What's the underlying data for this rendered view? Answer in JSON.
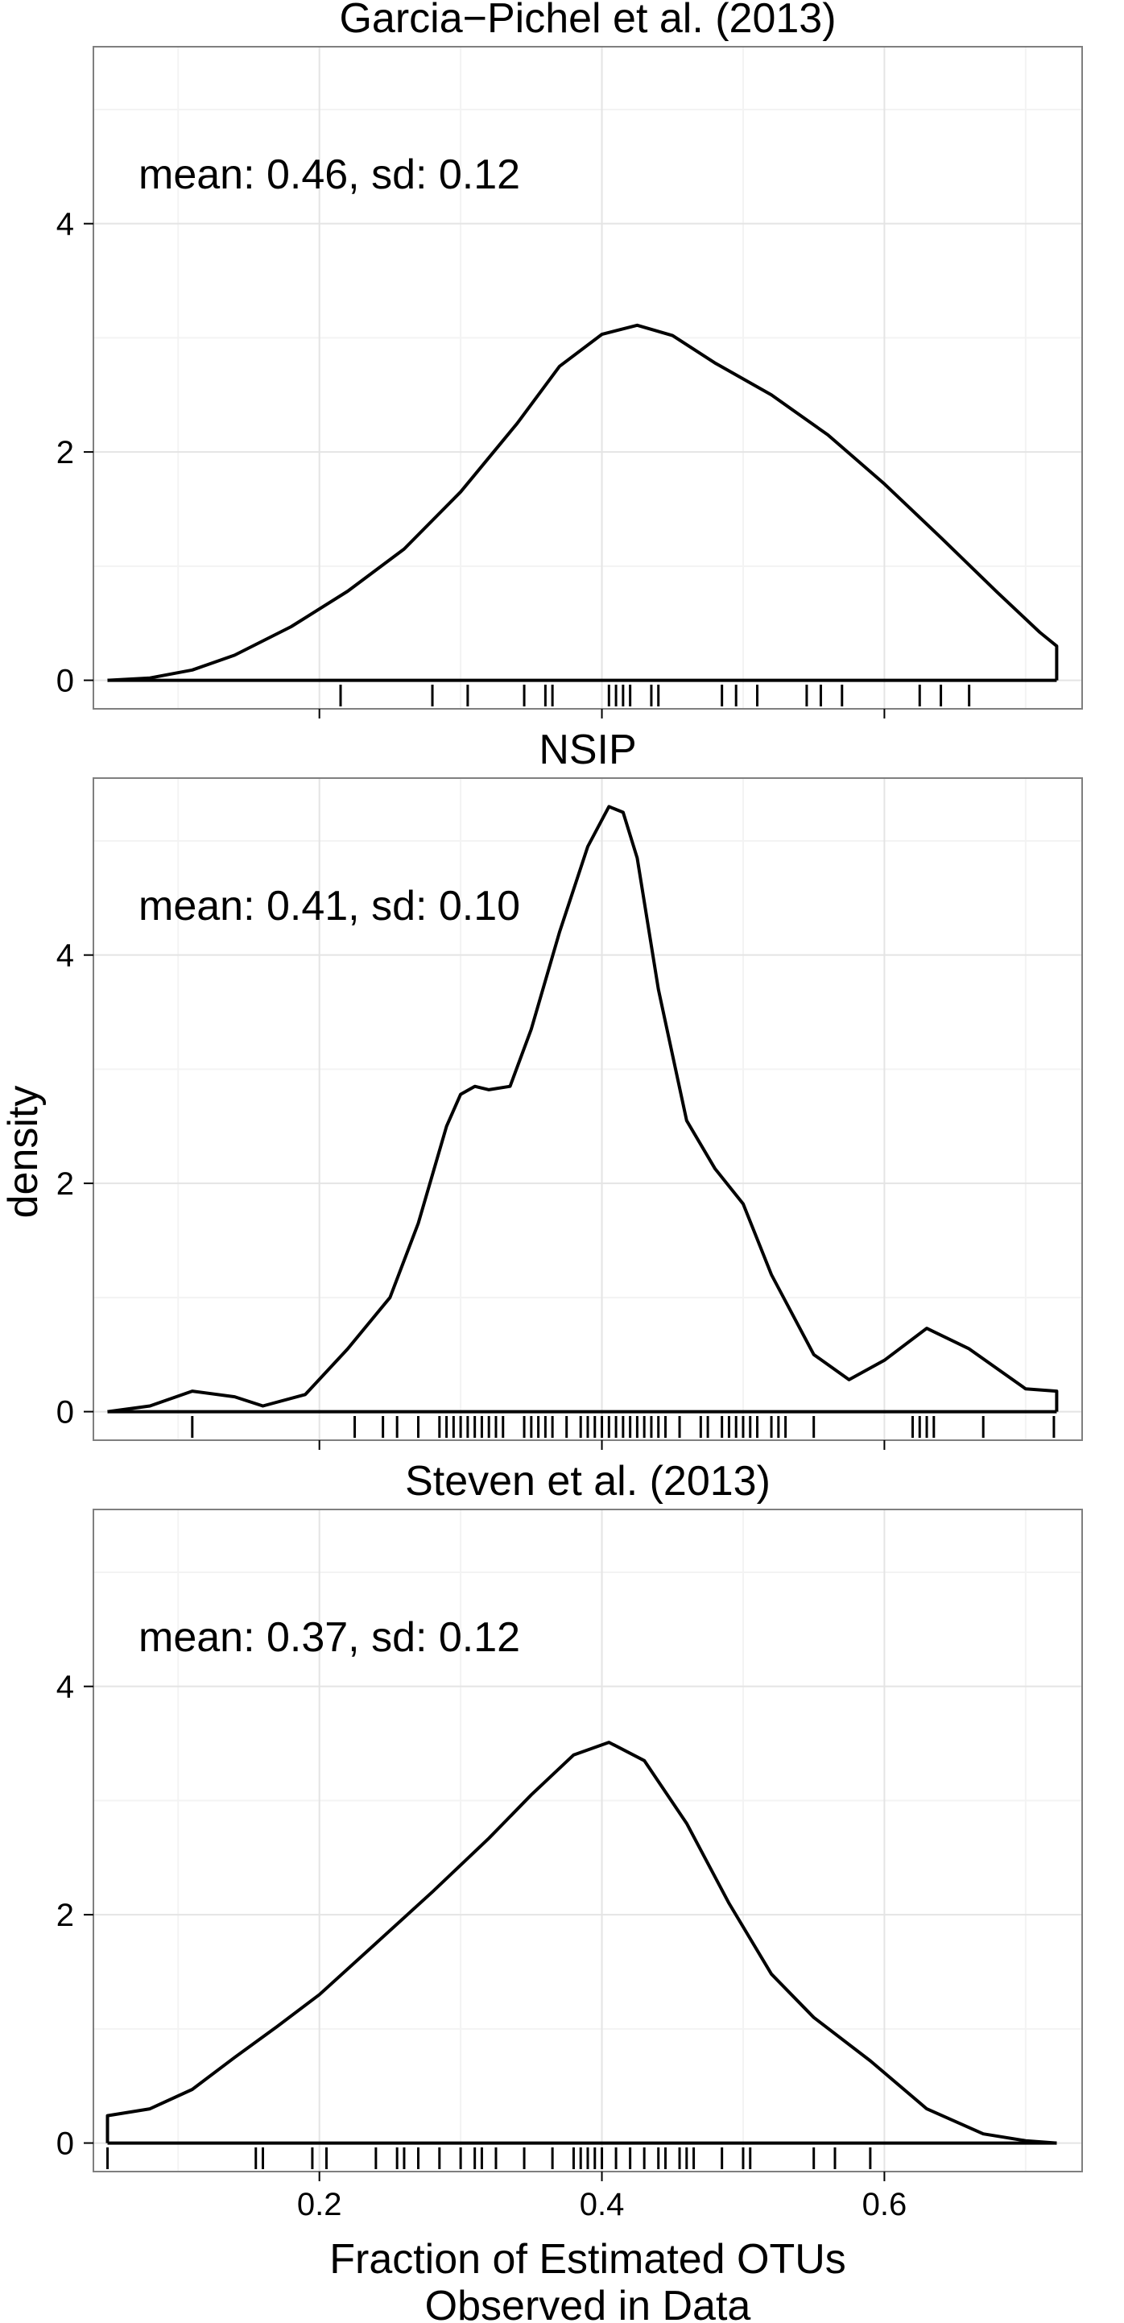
{
  "chart_data": {
    "type": "density",
    "xlabel_lines": [
      "Fraction of Estimated OTUs",
      "Observed in Data"
    ],
    "ylabel": "density",
    "xlim": [
      0.04,
      0.74
    ],
    "ylim": [
      -0.25,
      5.55
    ],
    "x_ticks": [
      0.2,
      0.4,
      0.6
    ],
    "x_tick_labels": [
      "0.2",
      "0.4",
      "0.6"
    ],
    "y_ticks": [
      0,
      2,
      4
    ],
    "y_tick_labels": [
      "0",
      "2",
      "4"
    ],
    "panels": [
      {
        "title": "Garcia−Pichel et al. (2013)",
        "annotation": "mean: 0.46, sd: 0.12",
        "density": {
          "x": [
            0.05,
            0.08,
            0.11,
            0.14,
            0.18,
            0.22,
            0.26,
            0.3,
            0.34,
            0.37,
            0.4,
            0.425,
            0.45,
            0.48,
            0.52,
            0.56,
            0.6,
            0.64,
            0.68,
            0.71,
            0.722,
            0.722
          ],
          "y": [
            0,
            0.02,
            0.09,
            0.22,
            0.47,
            0.78,
            1.15,
            1.65,
            2.25,
            2.75,
            3.03,
            3.11,
            3.02,
            2.78,
            2.5,
            2.15,
            1.72,
            1.25,
            0.77,
            0.42,
            0.3,
            0
          ]
        },
        "rug": [
          0.215,
          0.28,
          0.305,
          0.345,
          0.36,
          0.365,
          0.405,
          0.41,
          0.415,
          0.42,
          0.435,
          0.44,
          0.485,
          0.495,
          0.51,
          0.545,
          0.555,
          0.57,
          0.625,
          0.64,
          0.66
        ]
      },
      {
        "title": "NSIP",
        "annotation": "mean: 0.41, sd: 0.10",
        "density": {
          "x": [
            0.05,
            0.08,
            0.11,
            0.14,
            0.16,
            0.19,
            0.22,
            0.25,
            0.27,
            0.29,
            0.3,
            0.31,
            0.32,
            0.335,
            0.35,
            0.37,
            0.39,
            0.405,
            0.415,
            0.425,
            0.44,
            0.46,
            0.48,
            0.5,
            0.52,
            0.55,
            0.575,
            0.6,
            0.63,
            0.66,
            0.7,
            0.722,
            0.722
          ],
          "y": [
            0,
            0.05,
            0.18,
            0.13,
            0.05,
            0.15,
            0.55,
            1.0,
            1.65,
            2.5,
            2.78,
            2.85,
            2.82,
            2.85,
            3.35,
            4.2,
            4.95,
            5.3,
            5.25,
            4.85,
            3.7,
            2.55,
            2.13,
            1.82,
            1.2,
            0.5,
            0.28,
            0.45,
            0.73,
            0.55,
            0.2,
            0.18,
            0
          ]
        },
        "rug": [
          0.11,
          0.225,
          0.245,
          0.255,
          0.27,
          0.285,
          0.29,
          0.295,
          0.3,
          0.305,
          0.31,
          0.315,
          0.32,
          0.325,
          0.33,
          0.345,
          0.35,
          0.355,
          0.36,
          0.365,
          0.375,
          0.385,
          0.39,
          0.395,
          0.4,
          0.405,
          0.41,
          0.415,
          0.42,
          0.425,
          0.43,
          0.435,
          0.44,
          0.445,
          0.455,
          0.47,
          0.475,
          0.485,
          0.49,
          0.495,
          0.5,
          0.505,
          0.51,
          0.52,
          0.525,
          0.53,
          0.55,
          0.62,
          0.625,
          0.63,
          0.635,
          0.67,
          0.72
        ]
      },
      {
        "title": "Steven et al. (2013)",
        "annotation": "mean: 0.37, sd: 0.12",
        "density": {
          "x": [
            0.05,
            0.05,
            0.08,
            0.11,
            0.14,
            0.17,
            0.2,
            0.24,
            0.28,
            0.32,
            0.35,
            0.38,
            0.405,
            0.43,
            0.46,
            0.49,
            0.52,
            0.55,
            0.59,
            0.63,
            0.67,
            0.7,
            0.722
          ],
          "y": [
            0,
            0.24,
            0.3,
            0.47,
            0.75,
            1.02,
            1.3,
            1.75,
            2.2,
            2.67,
            3.05,
            3.4,
            3.51,
            3.35,
            2.8,
            2.1,
            1.48,
            1.1,
            0.72,
            0.3,
            0.08,
            0.02,
            0
          ]
        },
        "rug": [
          0.05,
          0.155,
          0.16,
          0.195,
          0.205,
          0.24,
          0.255,
          0.26,
          0.27,
          0.285,
          0.3,
          0.31,
          0.315,
          0.325,
          0.345,
          0.365,
          0.38,
          0.385,
          0.39,
          0.395,
          0.4,
          0.41,
          0.42,
          0.43,
          0.44,
          0.445,
          0.455,
          0.46,
          0.465,
          0.485,
          0.5,
          0.505,
          0.55,
          0.565,
          0.59
        ]
      }
    ]
  }
}
